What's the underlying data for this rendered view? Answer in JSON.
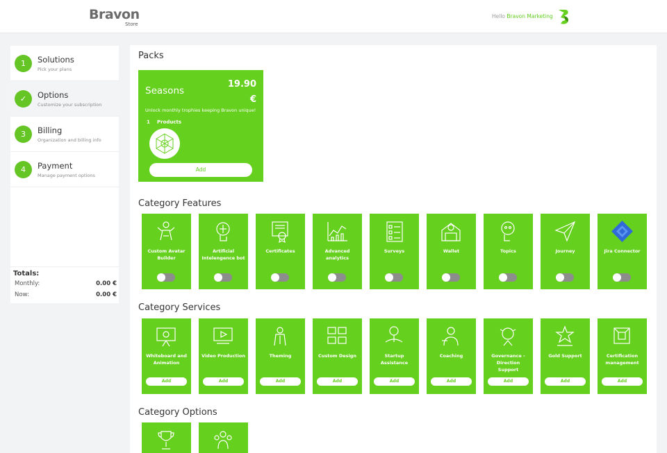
{
  "header": {
    "logo_text": "Bravon",
    "logo_sub": "Store",
    "hello": "Hello",
    "user": "Bravon Marketing",
    "brand_color": "#66d01e"
  },
  "sidebar": {
    "steps": [
      {
        "num": "1",
        "title": "Solutions",
        "sub": "Pick your plans",
        "state": "done"
      },
      {
        "num": "✓",
        "title": "Options",
        "sub": "Customize your subscription",
        "state": "active"
      },
      {
        "num": "3",
        "title": "Billing",
        "sub": "Organization and billing info",
        "state": "pending"
      },
      {
        "num": "4",
        "title": "Payment",
        "sub": "Manage payment options",
        "state": "pending"
      }
    ],
    "totals": {
      "title": "Totals:",
      "monthly_label": "Monthly:",
      "monthly_value": "0.00 €",
      "now_label": "Now:",
      "now_value": "0.00 €"
    }
  },
  "main": {
    "packs_title": "Packs",
    "pack": {
      "name": "Seasons",
      "price": "19.90",
      "currency": "€",
      "description": "Unlock monthly trophies keeping Bravon unique!",
      "products_count": "1",
      "products_label": "Products",
      "add_label": "Add"
    },
    "features_title": "Category Features",
    "features": [
      {
        "label": "Custom Avatar Builder",
        "icon": "avatar-builder-icon",
        "enabled": false
      },
      {
        "label": "Artificial Intelengence bot",
        "icon": "ai-bot-icon",
        "enabled": false
      },
      {
        "label": "Certificates",
        "icon": "certificate-icon",
        "enabled": false
      },
      {
        "label": "Advanced analytics",
        "icon": "analytics-icon",
        "enabled": false
      },
      {
        "label": "Surveys",
        "icon": "survey-icon",
        "enabled": false
      },
      {
        "label": "Wallet",
        "icon": "wallet-icon",
        "enabled": false
      },
      {
        "label": "Topics",
        "icon": "topics-icon",
        "enabled": false
      },
      {
        "label": "Journey",
        "icon": "journey-icon",
        "enabled": false
      },
      {
        "label": "Jira Connector",
        "icon": "jira-icon",
        "enabled": false
      }
    ],
    "services_title": "Category Services",
    "services": [
      {
        "label": "Whiteboard and Animation",
        "icon": "whiteboard-icon",
        "add_label": "Add"
      },
      {
        "label": "Video Production",
        "icon": "video-icon",
        "add_label": "Add"
      },
      {
        "label": "Theming",
        "icon": "theming-icon",
        "add_label": "Add"
      },
      {
        "label": "Custom Design",
        "icon": "design-icon",
        "add_label": "Add"
      },
      {
        "label": "Startup Assistance",
        "icon": "startup-icon",
        "add_label": "Add"
      },
      {
        "label": "Coaching",
        "icon": "coaching-icon",
        "add_label": "Add"
      },
      {
        "label": "Governance - Direction Support",
        "icon": "governance-icon",
        "add_label": "Add"
      },
      {
        "label": "Gold Support",
        "icon": "support-icon",
        "add_label": "Add"
      },
      {
        "label": "Certification management",
        "icon": "certification-icon",
        "add_label": "Add"
      }
    ],
    "options_title": "Category Options",
    "options": [
      {
        "icon": "trophy-icon"
      },
      {
        "icon": "team-icon"
      }
    ]
  }
}
